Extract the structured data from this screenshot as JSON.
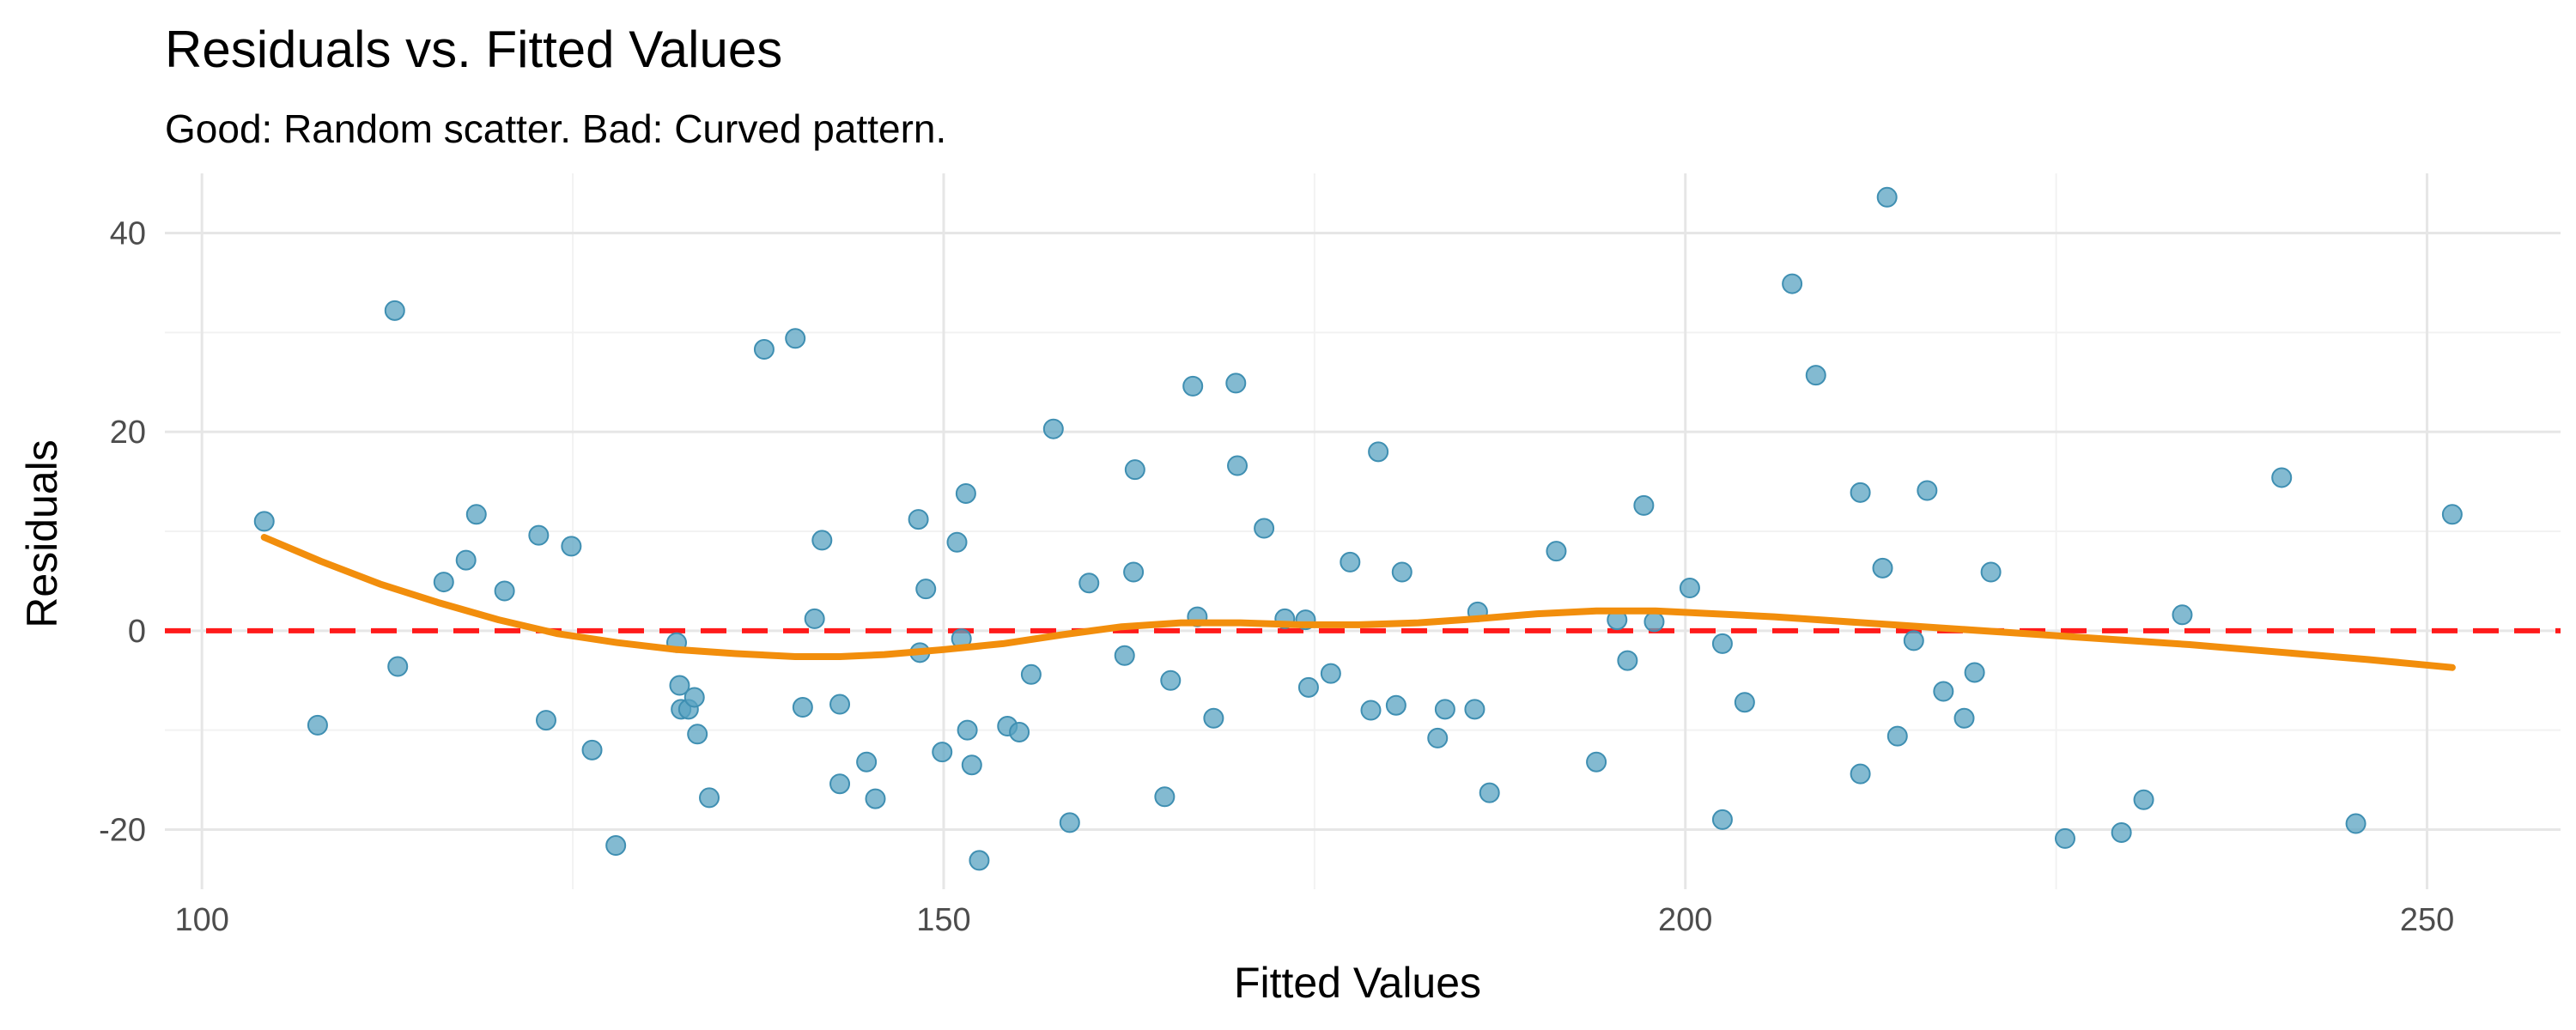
{
  "chart_data": {
    "type": "scatter",
    "title": "Residuals vs. Fitted Values",
    "subtitle": "Good: Random scatter. Bad: Curved pattern.",
    "xlabel": "Fitted Values",
    "ylabel": "Residuals",
    "xlim": [
      97.5,
      259
    ],
    "ylim": [
      -26,
      46
    ],
    "x_ticks": [
      100,
      150,
      200,
      250
    ],
    "y_ticks": [
      -20,
      0,
      20,
      40
    ],
    "x_tick_labels": [
      "100",
      "150",
      "200",
      "250"
    ],
    "y_tick_labels": [
      "-20",
      "0",
      "20",
      "40"
    ],
    "grid": true,
    "reference_line": {
      "y": 0,
      "style": "dashed",
      "color": "#ff0000"
    },
    "point_color": "#5aa3c2",
    "smooth_color": "#f28e0c",
    "points": [
      {
        "x": 104.2,
        "y": 11.0
      },
      {
        "x": 107.8,
        "y": -9.5
      },
      {
        "x": 113.0,
        "y": 32.2
      },
      {
        "x": 113.2,
        "y": -3.6
      },
      {
        "x": 116.3,
        "y": 4.9
      },
      {
        "x": 117.8,
        "y": 7.1
      },
      {
        "x": 118.5,
        "y": 11.7
      },
      {
        "x": 120.4,
        "y": 4.0
      },
      {
        "x": 122.7,
        "y": 9.6
      },
      {
        "x": 123.2,
        "y": -9.0
      },
      {
        "x": 124.9,
        "y": 8.5
      },
      {
        "x": 126.3,
        "y": -12.0
      },
      {
        "x": 127.9,
        "y": -21.6
      },
      {
        "x": 132.0,
        "y": -1.2
      },
      {
        "x": 132.2,
        "y": -5.5
      },
      {
        "x": 132.3,
        "y": -7.9
      },
      {
        "x": 132.8,
        "y": -7.9
      },
      {
        "x": 133.2,
        "y": -6.7
      },
      {
        "x": 133.4,
        "y": -10.4
      },
      {
        "x": 134.2,
        "y": -16.8
      },
      {
        "x": 137.9,
        "y": 28.3
      },
      {
        "x": 140.0,
        "y": 29.4
      },
      {
        "x": 140.5,
        "y": -7.7
      },
      {
        "x": 141.3,
        "y": 1.2
      },
      {
        "x": 141.8,
        "y": 9.1
      },
      {
        "x": 143.0,
        "y": -7.4
      },
      {
        "x": 143.0,
        "y": -15.4
      },
      {
        "x": 144.8,
        "y": -13.2
      },
      {
        "x": 145.4,
        "y": -16.9
      },
      {
        "x": 148.3,
        "y": 11.2
      },
      {
        "x": 148.4,
        "y": -2.2
      },
      {
        "x": 148.8,
        "y": 4.2
      },
      {
        "x": 149.9,
        "y": -12.2
      },
      {
        "x": 150.9,
        "y": 8.9
      },
      {
        "x": 151.2,
        "y": -0.8
      },
      {
        "x": 151.5,
        "y": 13.8
      },
      {
        "x": 151.6,
        "y": -10.0
      },
      {
        "x": 151.9,
        "y": -13.5
      },
      {
        "x": 152.4,
        "y": -23.1
      },
      {
        "x": 154.3,
        "y": -9.6
      },
      {
        "x": 155.1,
        "y": -10.2
      },
      {
        "x": 155.9,
        "y": -4.4
      },
      {
        "x": 157.4,
        "y": 20.3
      },
      {
        "x": 158.5,
        "y": -19.3
      },
      {
        "x": 159.8,
        "y": 4.8
      },
      {
        "x": 162.2,
        "y": -2.5
      },
      {
        "x": 162.9,
        "y": 16.2
      },
      {
        "x": 162.8,
        "y": 5.9
      },
      {
        "x": 164.9,
        "y": -16.7
      },
      {
        "x": 165.3,
        "y": -5.0
      },
      {
        "x": 166.8,
        "y": 24.6
      },
      {
        "x": 167.1,
        "y": 1.4
      },
      {
        "x": 168.2,
        "y": -8.8
      },
      {
        "x": 169.7,
        "y": 24.9
      },
      {
        "x": 169.8,
        "y": 16.6
      },
      {
        "x": 171.6,
        "y": 10.3
      },
      {
        "x": 173.0,
        "y": 1.2
      },
      {
        "x": 174.4,
        "y": 1.1
      },
      {
        "x": 174.6,
        "y": -5.7
      },
      {
        "x": 176.1,
        "y": -4.3
      },
      {
        "x": 177.4,
        "y": 6.9
      },
      {
        "x": 178.8,
        "y": -8.0
      },
      {
        "x": 179.3,
        "y": 18.0
      },
      {
        "x": 180.5,
        "y": -7.5
      },
      {
        "x": 180.9,
        "y": 5.9
      },
      {
        "x": 183.3,
        "y": -10.8
      },
      {
        "x": 183.8,
        "y": -7.9
      },
      {
        "x": 185.8,
        "y": -7.9
      },
      {
        "x": 186.0,
        "y": 1.9
      },
      {
        "x": 186.8,
        "y": -16.3
      },
      {
        "x": 191.3,
        "y": 8.0
      },
      {
        "x": 194.0,
        "y": -13.2
      },
      {
        "x": 195.4,
        "y": 1.1
      },
      {
        "x": 196.1,
        "y": -3.0
      },
      {
        "x": 197.2,
        "y": 12.6
      },
      {
        "x": 197.9,
        "y": 0.9
      },
      {
        "x": 200.3,
        "y": 4.3
      },
      {
        "x": 202.5,
        "y": -1.3
      },
      {
        "x": 202.5,
        "y": -19.0
      },
      {
        "x": 204.0,
        "y": -7.2
      },
      {
        "x": 207.2,
        "y": 34.9
      },
      {
        "x": 208.8,
        "y": 25.7
      },
      {
        "x": 211.8,
        "y": 13.9
      },
      {
        "x": 211.8,
        "y": -14.4
      },
      {
        "x": 213.3,
        "y": 6.3
      },
      {
        "x": 213.6,
        "y": 43.6
      },
      {
        "x": 214.3,
        "y": -10.6
      },
      {
        "x": 215.4,
        "y": -1.0
      },
      {
        "x": 216.3,
        "y": 14.1
      },
      {
        "x": 217.4,
        "y": -6.1
      },
      {
        "x": 218.8,
        "y": -8.8
      },
      {
        "x": 219.5,
        "y": -4.2
      },
      {
        "x": 220.6,
        "y": 5.9
      },
      {
        "x": 225.6,
        "y": -20.9
      },
      {
        "x": 229.4,
        "y": -20.3
      },
      {
        "x": 230.9,
        "y": -17.0
      },
      {
        "x": 233.5,
        "y": 1.6
      },
      {
        "x": 240.2,
        "y": 15.4
      },
      {
        "x": 245.2,
        "y": -19.4
      },
      {
        "x": 251.7,
        "y": 11.7
      }
    ],
    "smooth": [
      {
        "x": 104.2,
        "y": 9.4
      },
      {
        "x": 108,
        "y": 7.0
      },
      {
        "x": 112,
        "y": 4.7
      },
      {
        "x": 116,
        "y": 2.8
      },
      {
        "x": 120,
        "y": 1.1
      },
      {
        "x": 124,
        "y": -0.3
      },
      {
        "x": 128,
        "y": -1.2
      },
      {
        "x": 132,
        "y": -1.9
      },
      {
        "x": 136,
        "y": -2.3
      },
      {
        "x": 140,
        "y": -2.6
      },
      {
        "x": 143,
        "y": -2.6
      },
      {
        "x": 146,
        "y": -2.4
      },
      {
        "x": 150,
        "y": -1.9
      },
      {
        "x": 154,
        "y": -1.3
      },
      {
        "x": 158,
        "y": -0.4
      },
      {
        "x": 162,
        "y": 0.4
      },
      {
        "x": 166,
        "y": 0.8
      },
      {
        "x": 170,
        "y": 0.8
      },
      {
        "x": 174,
        "y": 0.6
      },
      {
        "x": 178,
        "y": 0.6
      },
      {
        "x": 182,
        "y": 0.8
      },
      {
        "x": 186,
        "y": 1.2
      },
      {
        "x": 190,
        "y": 1.7
      },
      {
        "x": 194,
        "y": 2.0
      },
      {
        "x": 198,
        "y": 2.0
      },
      {
        "x": 202,
        "y": 1.7
      },
      {
        "x": 206,
        "y": 1.4
      },
      {
        "x": 210,
        "y": 1.0
      },
      {
        "x": 214,
        "y": 0.6
      },
      {
        "x": 218,
        "y": 0.2
      },
      {
        "x": 222,
        "y": -0.2
      },
      {
        "x": 226,
        "y": -0.6
      },
      {
        "x": 230,
        "y": -1.0
      },
      {
        "x": 234,
        "y": -1.4
      },
      {
        "x": 238,
        "y": -1.9
      },
      {
        "x": 242,
        "y": -2.4
      },
      {
        "x": 246,
        "y": -2.9
      },
      {
        "x": 251.7,
        "y": -3.7
      }
    ]
  }
}
